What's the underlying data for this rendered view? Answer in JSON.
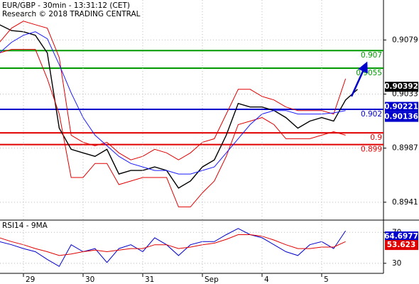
{
  "chart_data": [
    {
      "type": "line",
      "title": "EUR/GBP - 30min - 13:31:12 (CET)",
      "subtitle": "Research © 2018 TRADING CENTRAL",
      "x": [
        -0.4,
        -0.2,
        0,
        0.2,
        0.4,
        0.6,
        0.8,
        1.0,
        1.2,
        1.4,
        1.6,
        1.8,
        2.0,
        2.2,
        2.4,
        2.6,
        2.8,
        3.0,
        3.2,
        3.4,
        3.6,
        3.8,
        4.0,
        4.2,
        4.4,
        4.6,
        4.8,
        5.0,
        5.2,
        5.4,
        5.6
      ],
      "xlim": [
        -0.393,
        6.036
      ],
      "xticks": [
        {
          "value": 0,
          "label": "29"
        },
        {
          "value": 1,
          "label": "30"
        },
        {
          "value": 2,
          "label": "31"
        },
        {
          "value": 3,
          "label": "Sep"
        },
        {
          "value": 4,
          "label": "4"
        },
        {
          "value": 5,
          "label": "5"
        }
      ],
      "ylim": [
        0.8927,
        0.9113
      ],
      "yticks": [
        0.9079,
        0.9033,
        0.8987,
        0.8941
      ],
      "grid": true,
      "series": [
        {
          "color": "#000000",
          "values": [
            0.9092,
            0.9087,
            0.9086,
            0.9083,
            0.9068,
            0.9004,
            0.8986,
            0.8983,
            0.898,
            0.8986,
            0.8965,
            0.8968,
            0.8968,
            0.8971,
            0.8968,
            0.8953,
            0.8959,
            0.8971,
            0.8977,
            0.8998,
            0.9025,
            0.9022,
            0.9022,
            0.9019,
            0.9013,
            0.9004,
            0.901,
            0.9013,
            0.901,
            0.9028,
            0.9037
          ]
        },
        {
          "color": "#e00000",
          "values": [
            0.9077,
            0.9089,
            0.9095,
            0.9092,
            0.9089,
            0.9064,
            0.8998,
            0.8992,
            0.8989,
            0.8992,
            0.8983,
            0.8977,
            0.898,
            0.8986,
            0.8983,
            0.8977,
            0.8983,
            0.8992,
            0.8995,
            0.9016,
            0.9037,
            0.9037,
            0.9031,
            0.9028,
            0.9022,
            0.9019,
            0.9019,
            0.9019,
            0.9016,
            0.9046,
            null
          ]
        },
        {
          "color": "#e00000",
          "values": [
            0.9068,
            0.9071,
            0.9071,
            0.9071,
            0.9046,
            0.9016,
            0.8962,
            0.8962,
            0.8974,
            0.8974,
            0.8956,
            0.8959,
            0.8962,
            0.8962,
            0.8962,
            0.8937,
            0.8937,
            0.8949,
            0.8959,
            0.898,
            0.9007,
            0.901,
            0.9013,
            0.9007,
            0.8995,
            0.8995,
            0.8995,
            0.8998,
            0.9001,
            0.8998,
            null
          ]
        },
        {
          "color": "#1a1aff",
          "values": [
            0.9068,
            0.9077,
            0.9083,
            0.9086,
            0.908,
            0.9058,
            0.9034,
            0.9013,
            0.8998,
            0.8989,
            0.898,
            0.8974,
            0.8971,
            0.8968,
            0.8968,
            0.8965,
            0.8965,
            0.8968,
            0.8971,
            0.8983,
            0.8995,
            0.9007,
            0.9016,
            0.9019,
            0.9019,
            0.9016,
            0.9016,
            0.9016,
            0.9017,
            0.9019,
            null
          ]
        }
      ],
      "levels": [
        {
          "value": 0.907,
          "label": "0.907",
          "color": "#009900"
        },
        {
          "value": 0.9055,
          "label": "0.9055",
          "color": "#009900"
        },
        {
          "value": 0.902,
          "label": "0.902",
          "color": "#0000cc"
        },
        {
          "value": 0.9,
          "label": "0.9",
          "color": "#e00000"
        },
        {
          "value": 0.899,
          "label": "0.899",
          "color": "#e00000"
        }
      ],
      "markers": [
        {
          "value": 0.90392,
          "label": "0.90392",
          "color": "#000000"
        },
        {
          "value": 0.90221,
          "label": "0.90221",
          "color": "#0000cc"
        },
        {
          "value": 0.90136,
          "label": "0.90136",
          "color": "#0000cc"
        }
      ],
      "arrow": {
        "x": [
          5.5,
          5.75
        ],
        "y": [
          0.9031,
          0.9059
        ],
        "color": "#0000cc"
      }
    },
    {
      "type": "line",
      "title": "RSI14 - 9MA",
      "x": [
        -0.4,
        -0.2,
        0,
        0.2,
        0.4,
        0.6,
        0.8,
        1.0,
        1.2,
        1.4,
        1.6,
        1.8,
        2.0,
        2.2,
        2.4,
        2.6,
        2.8,
        3.0,
        3.2,
        3.4,
        3.6,
        3.8,
        4.0,
        4.2,
        4.4,
        4.6,
        4.8,
        5.0,
        5.2,
        5.4,
        5.6
      ],
      "ylim": [
        17,
        84
      ],
      "yticks": [
        70,
        30
      ],
      "grid": true,
      "series": [
        {
          "color": "#0000cc",
          "values": [
            58,
            54,
            49,
            45,
            35,
            26,
            54,
            45,
            49,
            31,
            49,
            54,
            45,
            63,
            54,
            40,
            54,
            58,
            58,
            67,
            75,
            67,
            63,
            54,
            45,
            40,
            54,
            58,
            49,
            72,
            null
          ]
        },
        {
          "color": "#e00000",
          "values": [
            63,
            58,
            54,
            49,
            45,
            40,
            42,
            45,
            47,
            45,
            47,
            49,
            49,
            54,
            54,
            49,
            51,
            54,
            56,
            61,
            67,
            67,
            65,
            60,
            54,
            49,
            49,
            51,
            51,
            58,
            null
          ]
        }
      ],
      "markers": [
        {
          "value": 64.6977,
          "label": "64.6977",
          "color": "#0000cc"
        },
        {
          "value": 53.623,
          "label": "53.623",
          "color": "#e00000"
        }
      ]
    }
  ]
}
